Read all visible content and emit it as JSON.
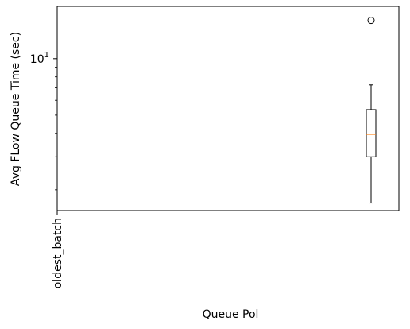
{
  "chart_data": {
    "type": "box",
    "title": "",
    "xlabel": "Queue Pol",
    "ylabel": "Avg FLow Queue Time (sec)",
    "y_scale": "log",
    "ylim": [
      1.55,
      19.0
    ],
    "grid": false,
    "legend": "none",
    "y_major_ticks": [
      {
        "value": 10,
        "label_base": "10",
        "label_exp": "1"
      }
    ],
    "y_minor_ticks": [
      2,
      3,
      4,
      5,
      6,
      7,
      8,
      9
    ],
    "categories": [
      "oldest_batch"
    ],
    "boxes": [
      {
        "name": "oldest_batch",
        "whisker_low": 1.7,
        "q1": 3.0,
        "median": 3.95,
        "q3": 5.35,
        "whisker_high": 7.25,
        "fliers": [
          16.0
        ]
      }
    ],
    "colors": {
      "box": "#000000",
      "median": "#ff7f0e",
      "whisker": "#000000",
      "flier": "#000000"
    }
  }
}
